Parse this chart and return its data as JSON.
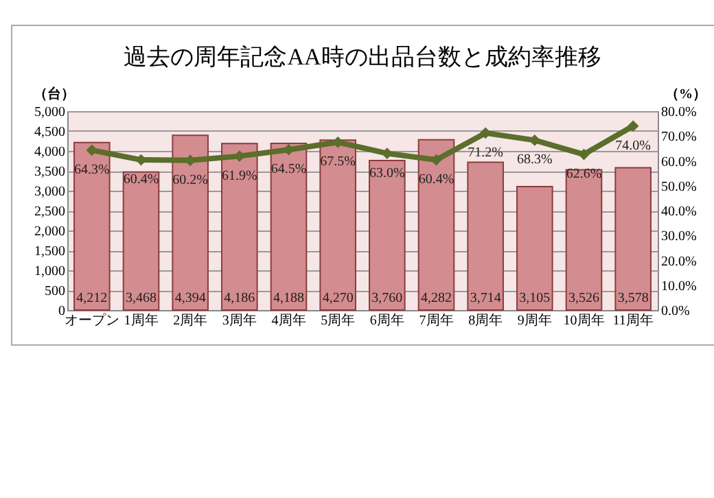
{
  "chart_data": {
    "type": "bar",
    "title": "過去の周年記念AA時の出品台数と成約率推移",
    "ylabel": "（台）",
    "y2label": "（%）",
    "categories": [
      "オープン",
      "1周年",
      "2周年",
      "3周年",
      "4周年",
      "5周年",
      "6周年",
      "7周年",
      "8周年",
      "9周年",
      "10周年",
      "11周年"
    ],
    "series": [
      {
        "color": "#d38c8f",
        "values": [
          4212,
          3468,
          4394,
          4186,
          4188,
          4270,
          3760,
          4282,
          3714,
          3105,
          3526,
          3578
        ],
        "value_labels": [
          "4,212",
          "3,468",
          "4,394",
          "4,186",
          "4,188",
          "4,270",
          "3,760",
          "4,282",
          "3,714",
          "3,105",
          "3,526",
          "3,578"
        ]
      },
      {
        "type": "line",
        "axis": "y2",
        "color": "#5b6e2b",
        "marker": "diamond",
        "values": [
          64.3,
          60.4,
          60.2,
          61.9,
          64.5,
          67.5,
          63.0,
          60.4,
          71.2,
          68.3,
          62.6,
          74.0
        ],
        "value_labels": [
          "64.3%",
          "60.4%",
          "60.2%",
          "61.9%",
          "64.5%",
          "67.5%",
          "63.0%",
          "60.4%",
          "71.2%",
          "68.3%",
          "62.6%",
          "74.0%"
        ]
      }
    ],
    "ylim": [
      0,
      5000
    ],
    "yticks": [
      0,
      {
        "value": 500,
        "label": "500"
      },
      {
        "value": 1000,
        "label": "1,000"
      },
      {
        "value": 1500,
        "label": "1,500"
      },
      {
        "value": 2000,
        "label": "2,000"
      },
      {
        "value": 2500,
        "label": "2,500"
      },
      {
        "value": 3000,
        "label": "3,000"
      },
      {
        "value": 3500,
        "label": "3,500"
      },
      {
        "value": 4000,
        "label": "4,000"
      },
      {
        "value": 4500,
        "label": "4,500"
      },
      {
        "value": 5000,
        "label": "5,000"
      }
    ],
    "y2lim": [
      0,
      80
    ],
    "y2ticks": [
      {
        "value": 0,
        "label": "0.0%"
      },
      {
        "value": 10,
        "label": "10.0%"
      },
      {
        "value": 20,
        "label": "20.0%"
      },
      {
        "value": 30,
        "label": "30.0%"
      },
      {
        "value": 40,
        "label": "40.0%"
      },
      {
        "value": 50,
        "label": "50.0%"
      },
      {
        "value": 60,
        "label": "60.0%"
      },
      {
        "value": 70,
        "label": "70.0%"
      },
      {
        "value": 80,
        "label": "80.0%"
      }
    ],
    "grid": "y"
  }
}
